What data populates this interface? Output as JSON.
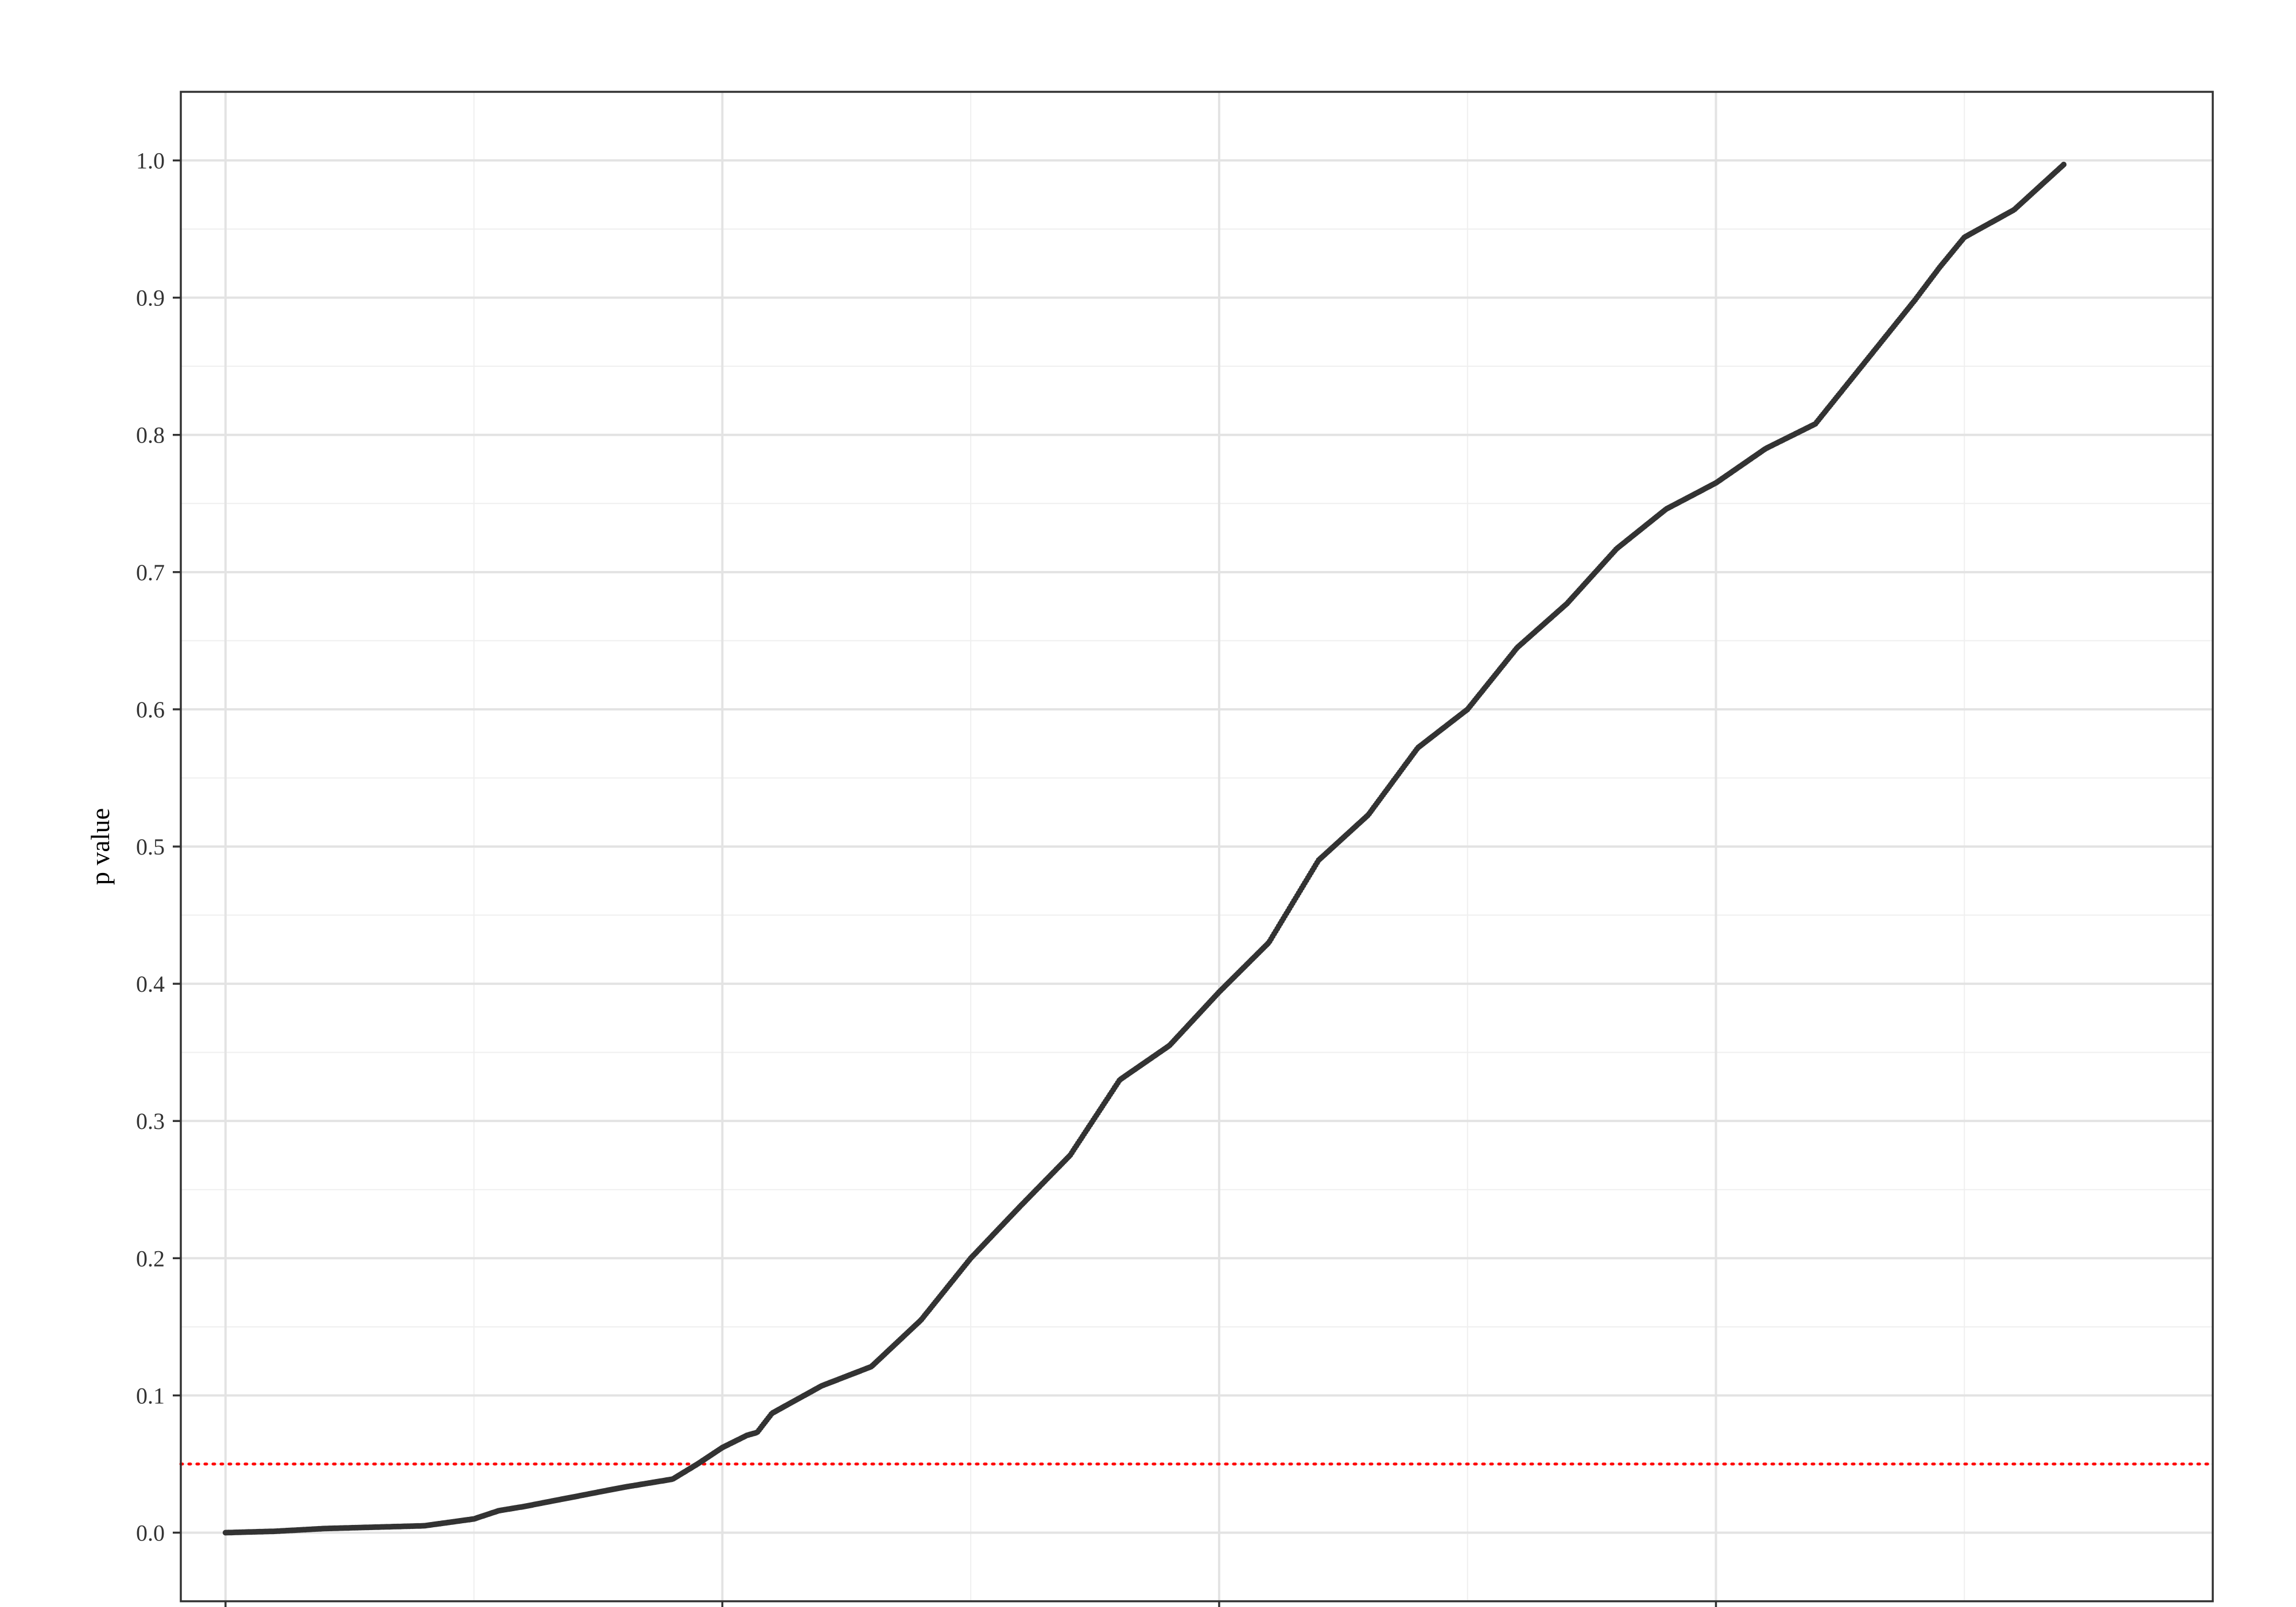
{
  "chart_data": {
    "type": "scatter",
    "title": "",
    "xlabel": "",
    "ylabel": "p value",
    "ylim": [
      -0.05,
      1.05
    ],
    "xlim": [
      -0.09,
      4.0
    ],
    "grid": true,
    "y_ticks": [
      0.0,
      0.1,
      0.2,
      0.3,
      0.4,
      0.5,
      0.6,
      0.7,
      0.8,
      0.9,
      1.0
    ],
    "y_tick_labels": [
      "0.0",
      "0.1",
      "0.2",
      "0.3",
      "0.4",
      "0.5",
      "0.6",
      "0.7",
      "0.8",
      "0.9",
      "1.0"
    ],
    "x_ticks": [
      0,
      1,
      2,
      3
    ],
    "x_tick_labels": [
      "",
      "",
      "",
      ""
    ],
    "x_minor_ticks": [
      0.5,
      1.5,
      2.5,
      3.5
    ],
    "reference_line": {
      "y": 0.05,
      "style": "dotted",
      "color": "#ff0000"
    },
    "point_color": "#333333",
    "series": [
      {
        "x": [
          0.0,
          0.1,
          0.2,
          0.3,
          0.4,
          0.5,
          0.55,
          0.6,
          0.7,
          0.8,
          0.9,
          0.95,
          1.0,
          1.05,
          1.07,
          1.1,
          1.2,
          1.3,
          1.4,
          1.5,
          1.6,
          1.7,
          1.8,
          1.9,
          2.0,
          2.1,
          2.2,
          2.3,
          2.4,
          2.5,
          2.6,
          2.7,
          2.8,
          2.9,
          3.0,
          3.1,
          3.2,
          3.3,
          3.4,
          3.45,
          3.5,
          3.6,
          3.7
        ],
        "y": [
          0.0,
          0.001,
          0.003,
          0.004,
          0.005,
          0.01,
          0.016,
          0.019,
          0.026,
          0.033,
          0.039,
          0.05,
          0.062,
          0.071,
          0.073,
          0.087,
          0.107,
          0.121,
          0.155,
          0.2,
          0.238,
          0.275,
          0.33,
          0.355,
          0.394,
          0.43,
          0.49,
          0.523,
          0.572,
          0.6,
          0.645,
          0.677,
          0.717,
          0.746,
          0.765,
          0.79,
          0.808,
          0.853,
          0.898,
          0.922,
          0.944,
          0.964,
          0.997
        ]
      }
    ]
  }
}
